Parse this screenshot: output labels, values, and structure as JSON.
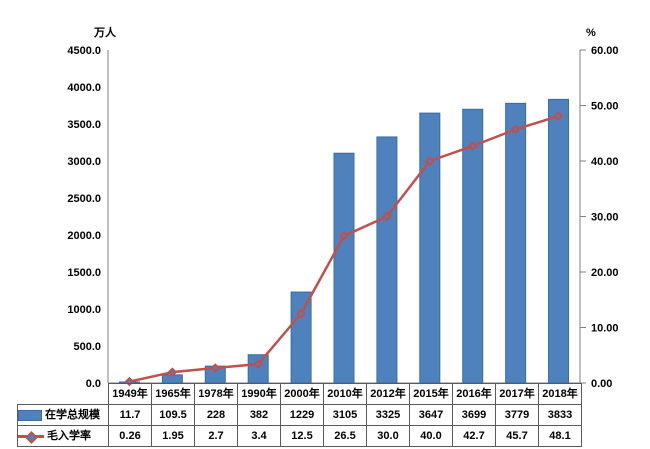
{
  "chart_data": {
    "type": "combo-bar-line",
    "title": "",
    "grid": false,
    "legend_position": "data-table-left",
    "categories": [
      "1949年",
      "1965年",
      "1978年",
      "1990年",
      "2000年",
      "2010年",
      "2012年",
      "2015年",
      "2016年",
      "2017年",
      "2018年"
    ],
    "series": [
      {
        "name": "在学总规模",
        "type": "bar",
        "axis": "left",
        "color": "#4F81BD",
        "border_color": "#3A6BA4",
        "values": [
          11.7,
          109.5,
          228,
          382,
          1229,
          3105,
          3325,
          3647,
          3699,
          3779,
          3833
        ],
        "labels": [
          "11.7",
          "109.5",
          "228",
          "382",
          "1229",
          "3105",
          "3325",
          "3647",
          "3699",
          "3779",
          "3833"
        ]
      },
      {
        "name": "毛入学率",
        "type": "line",
        "axis": "right",
        "color": "#C0504D",
        "marker": "diamond",
        "marker_fill": "#4F81BD",
        "values": [
          0.26,
          1.95,
          2.7,
          3.4,
          12.5,
          26.5,
          30.0,
          40.0,
          42.7,
          45.7,
          48.1
        ],
        "labels": [
          "0.26",
          "1.95",
          "2.7",
          "3.4",
          "12.5",
          "26.5",
          "30.0",
          "40.0",
          "42.7",
          "45.7",
          "48.1"
        ]
      }
    ],
    "left_axis": {
      "unit": "万人",
      "min": 0,
      "max": 4500,
      "step": 500,
      "decimals": 1
    },
    "right_axis": {
      "unit": "%",
      "min": 0,
      "max": 60,
      "step": 10,
      "decimals": 2
    }
  }
}
